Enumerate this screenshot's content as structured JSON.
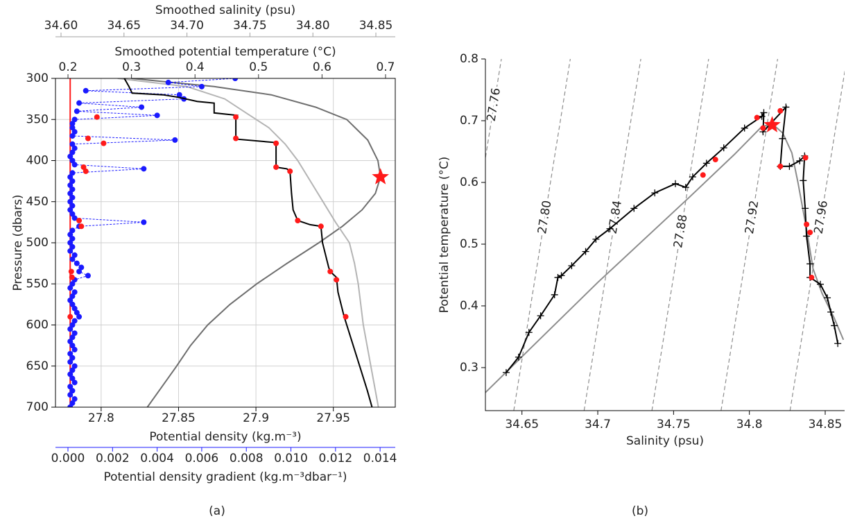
{
  "chart_data": [
    {
      "type": "profile",
      "caption": "(a)",
      "ylabel": "Pressure (dbars)",
      "ylim": [
        300,
        700
      ],
      "y_inverted": true,
      "yticks": [
        300,
        350,
        400,
        450,
        500,
        550,
        600,
        650,
        700
      ],
      "grid": true,
      "axes": {
        "density": {
          "label": "Potential density (kg.m⁻³)",
          "position": "bottom",
          "color": "#000000",
          "xlim": [
            27.7705,
            27.99
          ],
          "xticks": [
            27.8,
            27.85,
            27.9,
            27.95
          ]
        },
        "gradient": {
          "label": "Potential density gradient (kg.m⁻³dbar⁻¹)",
          "position": "bottom-outer",
          "color": "#1a1aff",
          "xlim": [
            -0.00056,
            0.01468
          ],
          "xticks": [
            {
              "value": 0,
              "label": "0.000"
            },
            {
              "value": 0.002,
              "label": "0.002"
            },
            {
              "value": 0.004,
              "label": "0.004"
            },
            {
              "value": 0.006,
              "label": "0.006"
            },
            {
              "value": 0.008,
              "label": "0.008"
            },
            {
              "value": 0.01,
              "label": "0.010"
            },
            {
              "value": 0.012,
              "label": "0.012"
            },
            {
              "value": 0.014,
              "label": "0.014"
            }
          ]
        },
        "temperature": {
          "label": "Smoothed potential temperature (°C)",
          "position": "top",
          "color": "#333333",
          "xlim": [
            0.1803,
            0.7153
          ],
          "xticks": [
            0.2,
            0.3,
            0.4,
            0.5,
            0.6,
            0.7
          ]
        },
        "salinity": {
          "label": "Smoothed salinity (psu)",
          "position": "top-outer",
          "color": "#a0a0a0",
          "xlim": [
            34.5956,
            34.8654
          ],
          "xticks": [
            {
              "value": 34.6,
              "label": "34.60"
            },
            34.65,
            {
              "value": 34.7,
              "label": "34.70"
            },
            34.75,
            {
              "value": 34.8,
              "label": "34.80"
            },
            34.85
          ]
        }
      },
      "series": [
        {
          "axis": "temperature",
          "style": "line",
          "color": "#6e6e6e",
          "pressure": [
            300,
            310,
            320,
            335,
            350,
            375,
            400,
            420,
            440,
            460,
            480,
            500,
            525,
            550,
            575,
            600,
            625,
            650,
            675,
            700
          ],
          "values": [
            0.3,
            0.43,
            0.52,
            0.59,
            0.639,
            0.672,
            0.688,
            0.692,
            0.684,
            0.663,
            0.632,
            0.595,
            0.545,
            0.497,
            0.455,
            0.42,
            0.393,
            0.371,
            0.348,
            0.325
          ]
        },
        {
          "axis": "salinity",
          "style": "line",
          "color": "#b4b4b4",
          "pressure": [
            300,
            310,
            325,
            340,
            360,
            380,
            400,
            425,
            450,
            475,
            500,
            525,
            550,
            600,
            650,
            700
          ],
          "values": [
            34.645,
            34.7,
            34.73,
            34.745,
            34.765,
            34.778,
            34.788,
            34.798,
            34.808,
            34.818,
            34.829,
            34.833,
            34.836,
            34.84,
            34.846,
            34.852
          ]
        },
        {
          "axis": "gradient",
          "style": "dashed-dots",
          "color": "#1a1aff",
          "pressure": [
            300,
            305,
            310,
            315,
            320,
            325,
            330,
            335,
            340,
            345,
            350,
            355,
            360,
            365,
            370,
            375,
            380,
            385,
            390,
            395,
            400,
            405,
            410,
            415,
            420,
            425,
            430,
            435,
            440,
            445,
            450,
            455,
            460,
            465,
            470,
            475,
            480,
            485,
            490,
            495,
            500,
            505,
            510,
            515,
            520,
            525,
            530,
            535,
            540,
            545,
            550,
            555,
            560,
            565,
            570,
            575,
            580,
            585,
            590,
            595,
            600,
            605,
            610,
            615,
            620,
            625,
            630,
            635,
            640,
            645,
            650,
            655,
            660,
            665,
            670,
            675,
            680,
            685,
            690,
            695,
            700
          ],
          "values": [
            0.0075,
            0.0045,
            0.006,
            0.0008,
            0.005,
            0.0052,
            0.0005,
            0.0033,
            0.0004,
            0.004,
            0.0003,
            0.0002,
            0.0002,
            0.0003,
            0.0002,
            0.0048,
            0.0002,
            0.0003,
            0.0002,
            0.0001,
            0.0002,
            0.0003,
            0.0034,
            0.0002,
            0.0001,
            0.0002,
            0.0001,
            0.0002,
            0.0001,
            0.0002,
            0.0001,
            0.0002,
            0.0001,
            0.0002,
            0.0003,
            0.0034,
            0.0005,
            0.0002,
            0.0001,
            0.0002,
            0.0001,
            0.0002,
            0.0001,
            0.0003,
            0.0002,
            0.0004,
            0.0006,
            0.0005,
            0.0009,
            0.0003,
            0.0002,
            0.0001,
            0.0003,
            0.0002,
            0.0001,
            0.0002,
            0.0003,
            0.0004,
            0.0005,
            0.0003,
            0.0002,
            0.0001,
            0.0003,
            0.0002,
            0.0001,
            0.0002,
            0.0003,
            0.0001,
            0.0002,
            0.0001,
            0.0003,
            0.0002,
            0.0001,
            0.0002,
            0.0003,
            0.0001,
            0.0002,
            0.0001,
            0.0003,
            0.0002,
            0.0001
          ]
        },
        {
          "axis": "density",
          "style": "line",
          "color": "#000000",
          "pressure": [
            300,
            310,
            318,
            320,
            323,
            328,
            330,
            342,
            345,
            348,
            373,
            374,
            378,
            380,
            408,
            410,
            413,
            440,
            460,
            473,
            478,
            480,
            500,
            530,
            535,
            542,
            560,
            590,
            620,
            650,
            680,
            700
          ],
          "values": [
            27.815,
            27.818,
            27.82,
            27.84,
            27.85,
            27.862,
            27.873,
            27.873,
            27.888,
            27.887,
            27.887,
            27.888,
            27.912,
            27.913,
            27.913,
            27.92,
            27.922,
            27.923,
            27.924,
            27.927,
            27.935,
            27.942,
            27.943,
            27.947,
            27.948,
            27.952,
            27.953,
            27.957,
            27.962,
            27.967,
            27.972,
            27.975
          ]
        },
        {
          "axis": "density",
          "style": "dots",
          "color": "#ff1a1a",
          "pressure": [
            347,
            373,
            379,
            408,
            413,
            473,
            480,
            535,
            545,
            590
          ],
          "values": [
            27.887,
            27.887,
            27.913,
            27.913,
            27.922,
            27.927,
            27.942,
            27.948,
            27.952,
            27.958
          ]
        },
        {
          "axis": "gradient",
          "style": "dots",
          "color": "#ff1a1a",
          "pressure": [
            347,
            373,
            379,
            408,
            413,
            473,
            480,
            535,
            542,
            590
          ],
          "values": [
            0.0013,
            0.0009,
            0.0016,
            0.0007,
            0.0008,
            0.0005,
            0.0006,
            0.00015,
            0.00018,
            0.0001
          ]
        }
      ],
      "threshold": {
        "axis": "gradient",
        "value": 0.0001,
        "color": "#ff1a1a"
      },
      "star": {
        "axis": "temperature",
        "value": 0.692,
        "pressure": 420,
        "color": "#ff1a1a"
      }
    },
    {
      "type": "ts",
      "caption": "(b)",
      "xlabel": "Salinity (psu)",
      "ylabel": "Potential temperature (°C)",
      "xlim": [
        34.6259,
        34.8628
      ],
      "ylim": [
        0.2303,
        0.8
      ],
      "xticks": [
        34.65,
        34.7,
        34.75,
        34.8,
        34.85
      ],
      "yticks": [
        0.3,
        0.4,
        0.5,
        0.6,
        0.7,
        0.8
      ],
      "isopycnals": [
        {
          "label": "27.76",
          "salinity": [
            34.599,
            34.6364
          ],
          "temperature": [
            0.2303,
            0.8
          ]
        },
        {
          "label": "27.80",
          "salinity": [
            34.6446,
            34.6819
          ],
          "temperature": [
            0.2303,
            0.8
          ]
        },
        {
          "label": "27.84",
          "salinity": [
            34.691,
            34.7284
          ],
          "temperature": [
            0.2303,
            0.8
          ]
        },
        {
          "label": "27.88",
          "salinity": [
            34.7357,
            34.7731
          ],
          "temperature": [
            0.2303,
            0.8
          ]
        },
        {
          "label": "27.92",
          "salinity": [
            34.7813,
            34.8186
          ],
          "temperature": [
            0.2303,
            0.8
          ]
        },
        {
          "label": "27.96",
          "salinity": [
            34.8268,
            34.8642
          ],
          "temperature": [
            0.2303,
            0.8
          ]
        }
      ],
      "isopycnal_color": "#8c8c8c",
      "series": [
        {
          "style": "line",
          "color": "#8c8c8c",
          "x": [
            34.624,
            34.7,
            34.76,
            34.79,
            34.808,
            34.815,
            34.822,
            34.828,
            34.832,
            34.838,
            34.842,
            34.848,
            34.856,
            34.862
          ],
          "values": [
            0.255,
            0.438,
            0.575,
            0.645,
            0.69,
            0.695,
            0.68,
            0.648,
            0.6,
            0.52,
            0.46,
            0.42,
            0.38,
            0.345
          ]
        },
        {
          "style": "line-plus",
          "color": "#000000",
          "x": [
            34.6396,
            34.6478,
            34.6546,
            34.6623,
            34.6715,
            34.6737,
            34.676,
            34.6828,
            34.692,
            34.6988,
            34.708,
            34.7239,
            34.7376,
            34.7512,
            34.758,
            34.7626,
            34.7717,
            34.7831,
            34.7968,
            34.8082,
            34.8095,
            34.809,
            34.8241,
            34.8218,
            34.8204,
            34.8264,
            34.8332,
            34.8364,
            34.8355,
            34.8368,
            34.8377,
            34.84,
            34.84,
            34.8468,
            34.8514,
            34.8537,
            34.856,
            34.8583
          ],
          "values": [
            0.292,
            0.317,
            0.357,
            0.384,
            0.418,
            0.446,
            0.449,
            0.465,
            0.488,
            0.508,
            0.525,
            0.558,
            0.583,
            0.598,
            0.592,
            0.609,
            0.631,
            0.656,
            0.688,
            0.707,
            0.713,
            0.682,
            0.722,
            0.671,
            0.626,
            0.626,
            0.635,
            0.643,
            0.603,
            0.558,
            0.513,
            0.468,
            0.446,
            0.435,
            0.413,
            0.39,
            0.368,
            0.339
          ]
        },
        {
          "style": "dots",
          "color": "#ff1a1a",
          "x": [
            34.805,
            34.809,
            34.8204,
            34.8204,
            34.837,
            34.7776,
            34.7694,
            34.8377,
            34.84,
            34.841
          ],
          "values": [
            0.705,
            0.688,
            0.716,
            0.626,
            0.64,
            0.637,
            0.612,
            0.532,
            0.519,
            0.446
          ]
        }
      ],
      "star": {
        "x": 34.815,
        "value": 0.693,
        "color": "#ff1a1a"
      }
    }
  ]
}
